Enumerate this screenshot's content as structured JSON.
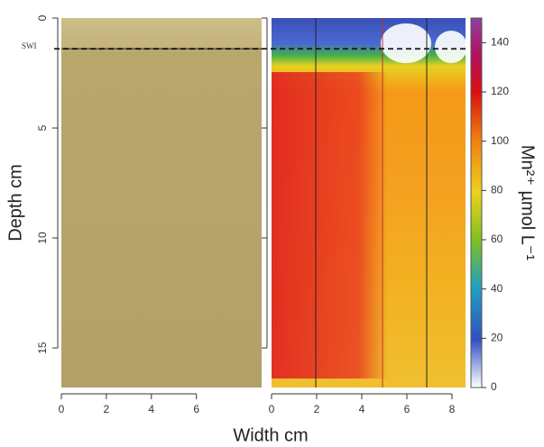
{
  "chart_data": {
    "type": "heatmap",
    "ylabel": "Depth cm",
    "xlabel": "Width cm",
    "swi_label": "SWI",
    "swi_depth": 1.4,
    "ylim": [
      0,
      16.8
    ],
    "yticks": [
      0,
      5,
      10,
      15
    ],
    "panels": [
      {
        "xlim": [
          0,
          8.9
        ],
        "xticks": [
          0,
          2,
          4,
          6
        ]
      },
      {
        "xlim": [
          0,
          8.6
        ],
        "xticks": [
          0,
          2,
          4,
          6,
          8
        ]
      }
    ],
    "colorbar": {
      "label": "Mn²⁺ µmol L⁻¹",
      "lim": [
        0,
        150
      ],
      "ticks": [
        0,
        20,
        40,
        60,
        80,
        100,
        120,
        140
      ]
    }
  }
}
